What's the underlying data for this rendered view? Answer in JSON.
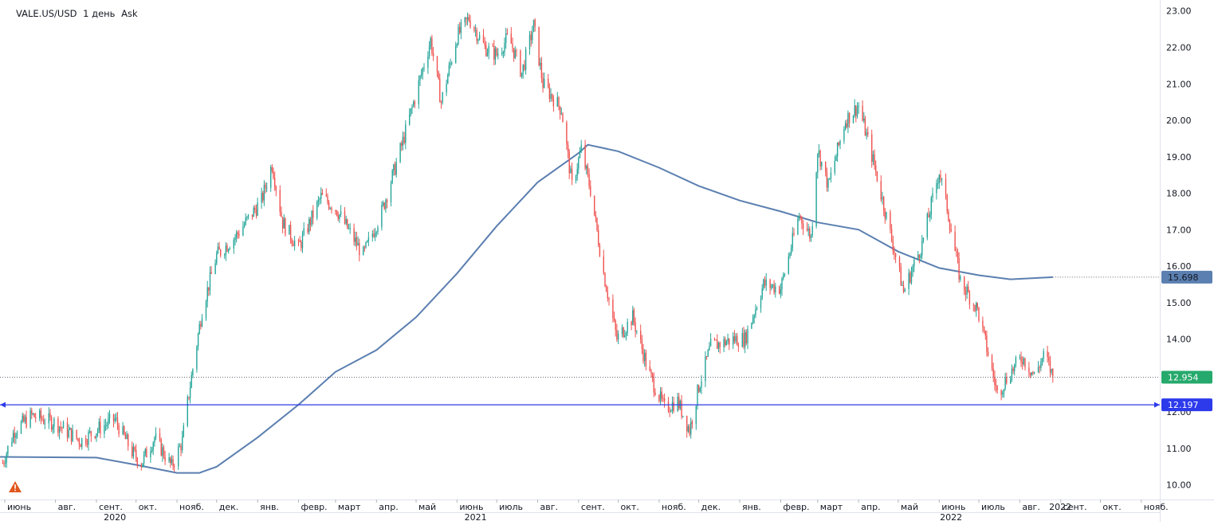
{
  "header": {
    "symbol": "VALE.US/USD",
    "interval": "1 день",
    "price_type": "Ask"
  },
  "colors": {
    "up": "#26a69a",
    "down": "#ef5350",
    "ma": "#5b7fb0",
    "hline": "#2d3aeb",
    "last_label": "#26a96c",
    "ma_label": "#5b7fb0",
    "grid": "#f0f3fa",
    "axis_text": "#131722",
    "warning": "#e0571d"
  },
  "chart_data": {
    "type": "candlestick",
    "symbol": "VALE.US/USD",
    "timeframe": "1 день",
    "ylim": [
      9.6,
      23.3
    ],
    "y_ticks": [
      "10.00",
      "11.00",
      "12.00",
      "13.00",
      "14.00",
      "15.00",
      "16.00",
      "17.00",
      "18.00",
      "19.00",
      "20.00",
      "21.00",
      "22.00",
      "23.00"
    ],
    "x_range": [
      "2020-06-20",
      "2022-11-15"
    ],
    "x_ticks": [
      {
        "label": "июнь",
        "date": "2020-06-01"
      },
      {
        "label": "авг.",
        "date": "2020-08-01"
      },
      {
        "label": "сент.",
        "date": "2020-09-01"
      },
      {
        "label": "окт.",
        "date": "2020-10-01"
      },
      {
        "label": "нояб.",
        "date": "2020-11-01"
      },
      {
        "label": "дек.",
        "date": "2020-12-01"
      },
      {
        "label": "янв.",
        "date": "2021-01-01"
      },
      {
        "label": "февр.",
        "date": "2021-02-01"
      },
      {
        "label": "март",
        "date": "2021-03-01"
      },
      {
        "label": "апр.",
        "date": "2021-04-01"
      },
      {
        "label": "май",
        "date": "2021-05-01"
      },
      {
        "label": "июнь",
        "date": "2021-06-01"
      },
      {
        "label": "июль",
        "date": "2021-07-01"
      },
      {
        "label": "авг.",
        "date": "2021-08-01"
      },
      {
        "label": "сент.",
        "date": "2021-09-01"
      },
      {
        "label": "окт.",
        "date": "2021-10-01"
      },
      {
        "label": "нояб.",
        "date": "2021-11-01"
      },
      {
        "label": "дек.",
        "date": "2021-12-01"
      },
      {
        "label": "янв.",
        "date": "2022-01-01"
      },
      {
        "label": "февр.",
        "date": "2022-02-01"
      },
      {
        "label": "март",
        "date": "2022-03-01"
      },
      {
        "label": "апр.",
        "date": "2022-04-01"
      },
      {
        "label": "май",
        "date": "2022-05-01"
      },
      {
        "label": "июнь",
        "date": "2022-06-01"
      },
      {
        "label": "июль",
        "date": "2022-07-01"
      },
      {
        "label": "авг.",
        "date": "2022-08-01"
      },
      {
        "label": "сент.",
        "date": "2022-09-01"
      },
      {
        "label": "окт.",
        "date": "2022-10-01"
      },
      {
        "label": "нояб.",
        "date": "2022-11-01"
      }
    ],
    "x_tick_marker": {
      "label": "2022",
      "date": "2022-08-22"
    },
    "years": [
      {
        "label": "2020",
        "date": "2020-09-15"
      },
      {
        "label": "2021",
        "date": "2021-06-15"
      },
      {
        "label": "2022",
        "date": "2022-06-10"
      }
    ],
    "close_anchors": [
      {
        "date": "2020-06-22",
        "close": 10.6
      },
      {
        "date": "2020-07-01",
        "close": 11.5
      },
      {
        "date": "2020-07-14",
        "close": 11.9
      },
      {
        "date": "2020-08-01",
        "close": 11.7
      },
      {
        "date": "2020-08-20",
        "close": 11.2
      },
      {
        "date": "2020-09-05",
        "close": 11.6
      },
      {
        "date": "2020-09-15",
        "close": 11.8
      },
      {
        "date": "2020-09-28",
        "close": 10.9
      },
      {
        "date": "2020-10-05",
        "close": 10.6
      },
      {
        "date": "2020-10-15",
        "close": 11.3
      },
      {
        "date": "2020-10-28",
        "close": 10.5
      },
      {
        "date": "2020-11-05",
        "close": 11.2
      },
      {
        "date": "2020-11-10",
        "close": 12.5
      },
      {
        "date": "2020-11-20",
        "close": 14.8
      },
      {
        "date": "2020-12-01",
        "close": 16.3
      },
      {
        "date": "2020-12-15",
        "close": 16.8
      },
      {
        "date": "2021-01-04",
        "close": 17.8
      },
      {
        "date": "2021-01-12",
        "close": 18.8
      },
      {
        "date": "2021-01-20",
        "close": 17.2
      },
      {
        "date": "2021-02-01",
        "close": 16.5
      },
      {
        "date": "2021-02-18",
        "close": 17.9
      },
      {
        "date": "2021-03-01",
        "close": 17.6
      },
      {
        "date": "2021-03-22",
        "close": 16.3
      },
      {
        "date": "2021-04-05",
        "close": 17.5
      },
      {
        "date": "2021-04-20",
        "close": 19.3
      },
      {
        "date": "2021-05-03",
        "close": 21.0
      },
      {
        "date": "2021-05-12",
        "close": 22.2
      },
      {
        "date": "2021-05-20",
        "close": 20.5
      },
      {
        "date": "2021-06-01",
        "close": 22.3
      },
      {
        "date": "2021-06-10",
        "close": 22.8
      },
      {
        "date": "2021-06-22",
        "close": 22.0
      },
      {
        "date": "2021-07-01",
        "close": 21.8
      },
      {
        "date": "2021-07-10",
        "close": 22.3
      },
      {
        "date": "2021-07-20",
        "close": 21.3
      },
      {
        "date": "2021-07-29",
        "close": 22.6
      },
      {
        "date": "2021-08-05",
        "close": 21.0
      },
      {
        "date": "2021-08-19",
        "close": 20.3
      },
      {
        "date": "2021-08-27",
        "close": 18.2
      },
      {
        "date": "2021-09-03",
        "close": 19.2
      },
      {
        "date": "2021-09-10",
        "close": 18.1
      },
      {
        "date": "2021-09-20",
        "close": 15.8
      },
      {
        "date": "2021-09-30",
        "close": 14.0
      },
      {
        "date": "2021-10-12",
        "close": 14.6
      },
      {
        "date": "2021-10-25",
        "close": 13.0
      },
      {
        "date": "2021-11-05",
        "close": 12.1
      },
      {
        "date": "2021-11-15",
        "close": 12.3
      },
      {
        "date": "2021-11-24",
        "close": 11.5
      },
      {
        "date": "2021-12-01",
        "close": 12.7
      },
      {
        "date": "2021-12-10",
        "close": 13.8
      },
      {
        "date": "2021-12-28",
        "close": 14.0
      },
      {
        "date": "2022-01-05",
        "close": 14.0
      },
      {
        "date": "2022-01-19",
        "close": 15.5
      },
      {
        "date": "2022-02-01",
        "close": 15.4
      },
      {
        "date": "2022-02-15",
        "close": 17.4
      },
      {
        "date": "2022-02-24",
        "close": 16.8
      },
      {
        "date": "2022-03-01",
        "close": 19.2
      },
      {
        "date": "2022-03-09",
        "close": 18.2
      },
      {
        "date": "2022-03-22",
        "close": 20.0
      },
      {
        "date": "2022-04-01",
        "close": 20.4
      },
      {
        "date": "2022-04-12",
        "close": 18.9
      },
      {
        "date": "2022-04-25",
        "close": 16.9
      },
      {
        "date": "2022-05-05",
        "close": 15.3
      },
      {
        "date": "2022-05-19",
        "close": 16.6
      },
      {
        "date": "2022-06-01",
        "close": 18.6
      },
      {
        "date": "2022-06-07",
        "close": 17.6
      },
      {
        "date": "2022-06-17",
        "close": 15.6
      },
      {
        "date": "2022-06-30",
        "close": 14.8
      },
      {
        "date": "2022-07-08",
        "close": 13.6
      },
      {
        "date": "2022-07-15",
        "close": 12.5
      },
      {
        "date": "2022-07-25",
        "close": 13.1
      },
      {
        "date": "2022-08-03",
        "close": 13.5
      },
      {
        "date": "2022-08-12",
        "close": 13.0
      },
      {
        "date": "2022-08-20",
        "close": 13.6
      },
      {
        "date": "2022-08-26",
        "close": 12.954
      }
    ],
    "moving_average": {
      "points": [
        {
          "date": "2020-06-20",
          "value": 10.77
        },
        {
          "date": "2020-09-01",
          "value": 10.75
        },
        {
          "date": "2020-10-01",
          "value": 10.55
        },
        {
          "date": "2020-11-01",
          "value": 10.33
        },
        {
          "date": "2020-11-18",
          "value": 10.33
        },
        {
          "date": "2020-12-01",
          "value": 10.5
        },
        {
          "date": "2021-01-01",
          "value": 11.3
        },
        {
          "date": "2021-02-01",
          "value": 12.2
        },
        {
          "date": "2021-03-01",
          "value": 13.1
        },
        {
          "date": "2021-04-01",
          "value": 13.7
        },
        {
          "date": "2021-05-01",
          "value": 14.6
        },
        {
          "date": "2021-06-01",
          "value": 15.8
        },
        {
          "date": "2021-07-01",
          "value": 17.1
        },
        {
          "date": "2021-08-01",
          "value": 18.3
        },
        {
          "date": "2021-09-01",
          "value": 19.1
        },
        {
          "date": "2021-09-08",
          "value": 19.33
        },
        {
          "date": "2021-10-01",
          "value": 19.15
        },
        {
          "date": "2021-11-01",
          "value": 18.7
        },
        {
          "date": "2021-12-01",
          "value": 18.2
        },
        {
          "date": "2022-01-01",
          "value": 17.8
        },
        {
          "date": "2022-02-01",
          "value": 17.5
        },
        {
          "date": "2022-03-01",
          "value": 17.2
        },
        {
          "date": "2022-04-01",
          "value": 17.0
        },
        {
          "date": "2022-05-01",
          "value": 16.4
        },
        {
          "date": "2022-06-01",
          "value": 15.95
        },
        {
          "date": "2022-07-01",
          "value": 15.75
        },
        {
          "date": "2022-07-25",
          "value": 15.64
        },
        {
          "date": "2022-08-26",
          "value": 15.698
        }
      ],
      "label": "15.698"
    },
    "last_price": {
      "value": 12.954,
      "label": "12.954"
    },
    "horizontal_line": {
      "value": 12.197,
      "label": "12.197"
    },
    "grid": false
  }
}
